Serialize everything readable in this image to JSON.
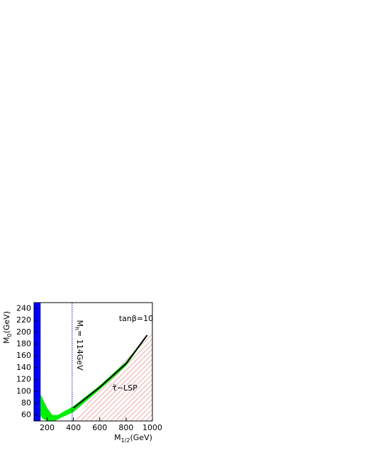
{
  "chart_data": {
    "type": "line",
    "xlim": [
      100,
      1000
    ],
    "ylim": [
      50,
      250
    ],
    "xticks": [
      200,
      400,
      600,
      800,
      1000
    ],
    "yticks": [
      60,
      80,
      100,
      120,
      140,
      160,
      180,
      200,
      220,
      240
    ],
    "x_label": {
      "main": "M",
      "sub": "1/2",
      "rest": "(GeV)"
    },
    "y_label": {
      "main": "M",
      "sub": "0",
      "rest": "(GeV)"
    },
    "annotations": {
      "tanb": "tanβ=10",
      "lsp": "τ̃−LSP"
    },
    "mh_line": {
      "x": 390,
      "color": "#0000cc",
      "label": {
        "main": "M",
        "sub": "h",
        "rest": "= 114GeV"
      }
    },
    "series": [
      {
        "style": "fill",
        "color": "#0000ff",
        "x": [
          100,
          150,
          150,
          100
        ],
        "y": [
          50,
          50,
          250,
          250
        ]
      },
      {
        "style": "hatch",
        "color": "#e07070",
        "x": [
          390,
          1000,
          1000
        ],
        "y": [
          50,
          50,
          205
        ]
      },
      {
        "style": "fill",
        "color": "#00ee00",
        "x": [
          150,
          200,
          240,
          280,
          400,
          600,
          800,
          960,
          950,
          800,
          600,
          400,
          300,
          260,
          200,
          160,
          150
        ],
        "y": [
          95,
          72,
          60,
          60,
          75,
          110,
          150,
          195,
          190,
          143,
          103,
          65,
          55,
          50,
          50,
          55,
          60
        ]
      },
      {
        "style": "line",
        "color": "#000000",
        "x": [
          400,
          600,
          800,
          960
        ],
        "y": [
          72,
          107,
          147,
          195
        ]
      }
    ]
  }
}
